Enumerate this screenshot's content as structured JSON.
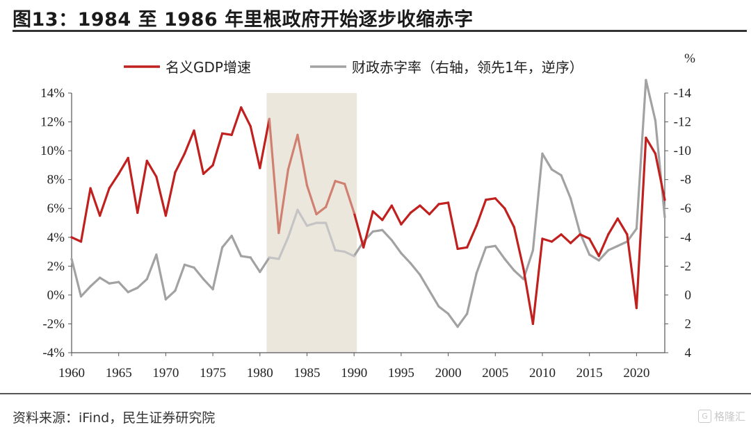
{
  "header": {
    "title": "图13：1984 至 1986 年里根政府开始逐步收缩赤字"
  },
  "footer": {
    "source": "资料来源：iFind，民生证券研究院",
    "watermark": "格隆汇",
    "watermark_mark": "G"
  },
  "chart_data": {
    "type": "line",
    "title": "图13：1984 至 1986 年里根政府开始逐步收缩赤字",
    "x": [
      1960,
      1961,
      1962,
      1963,
      1964,
      1965,
      1966,
      1967,
      1968,
      1969,
      1970,
      1971,
      1972,
      1973,
      1974,
      1975,
      1976,
      1977,
      1978,
      1979,
      1980,
      1981,
      1982,
      1983,
      1984,
      1985,
      1986,
      1987,
      1988,
      1989,
      1990,
      1991,
      1992,
      1993,
      1994,
      1995,
      1996,
      1997,
      1998,
      1999,
      2000,
      2001,
      2002,
      2003,
      2004,
      2005,
      2006,
      2007,
      2008,
      2009,
      2010,
      2011,
      2012,
      2013,
      2014,
      2015,
      2016,
      2017,
      2018,
      2019,
      2020,
      2021,
      2022,
      2023
    ],
    "xlim": [
      1960,
      2023
    ],
    "xticks": [
      "1960",
      "1965",
      "1970",
      "1975",
      "1980",
      "1985",
      "1990",
      "1995",
      "2000",
      "2005",
      "2010",
      "2015",
      "2020"
    ],
    "left_axis": {
      "label": "",
      "ylim": [
        -4,
        14
      ],
      "ticks": [
        "14%",
        "12%",
        "10%",
        "8%",
        "6%",
        "4%",
        "2%",
        "0%",
        "-2%",
        "-4%"
      ]
    },
    "right_axis": {
      "label": "%",
      "ylim": [
        4,
        -14
      ],
      "inverted": true,
      "ticks": [
        "-14",
        "-12",
        "-10",
        "-8",
        "-6",
        "-4",
        "-2",
        "0",
        "2",
        "4"
      ]
    },
    "shaded_region": {
      "x_start": 1981,
      "x_end": 1990,
      "color": "#ebe7dd"
    },
    "legend": {
      "position": "top",
      "entries": [
        "名义GDP增速",
        "财政赤字率（右轴，领先1年，逆序）"
      ]
    },
    "series": [
      {
        "name": "名义GDP增速",
        "axis": "left",
        "color": "#c0201e",
        "highlight_color": "#d08070",
        "values": [
          4.0,
          3.7,
          7.4,
          5.5,
          7.4,
          8.4,
          9.5,
          5.7,
          9.3,
          8.2,
          5.5,
          8.5,
          9.8,
          11.4,
          8.4,
          9.0,
          11.2,
          11.1,
          13.0,
          11.7,
          8.8,
          12.2,
          4.3,
          8.7,
          11.1,
          7.6,
          5.6,
          6.1,
          7.9,
          7.7,
          5.7,
          3.3,
          5.8,
          5.2,
          6.2,
          4.9,
          5.7,
          6.2,
          5.6,
          6.3,
          6.4,
          3.2,
          3.3,
          4.8,
          6.6,
          6.7,
          6.0,
          4.7,
          1.8,
          -2.0,
          3.9,
          3.7,
          4.2,
          3.6,
          4.2,
          3.9,
          2.7,
          4.2,
          5.3,
          4.2,
          -0.9,
          10.9,
          9.8,
          6.6
        ]
      },
      {
        "name": "财政赤字率（右轴，领先1年，逆序）",
        "axis": "right",
        "color": "#a2a2a2",
        "highlight_color": "#c4c4c4",
        "values": [
          -2.5,
          0.1,
          -0.6,
          -1.2,
          -0.8,
          -0.9,
          -0.2,
          -0.5,
          -1.1,
          -2.8,
          0.3,
          -0.3,
          -2.1,
          -1.9,
          -1.1,
          -0.4,
          -3.3,
          -4.1,
          -2.7,
          -2.6,
          -1.6,
          -2.6,
          -2.5,
          -4.0,
          -5.9,
          -4.8,
          -5.0,
          -5.0,
          -3.1,
          -3.0,
          -2.7,
          -3.7,
          -4.4,
          -4.5,
          -3.8,
          -2.9,
          -2.2,
          -1.4,
          -0.3,
          0.8,
          1.3,
          2.2,
          1.3,
          -1.5,
          -3.3,
          -3.4,
          -2.5,
          -1.7,
          -1.1,
          -3.1,
          -9.8,
          -8.7,
          -8.3,
          -6.7,
          -4.3,
          -2.8,
          -2.4,
          -3.1,
          -3.4,
          -3.7,
          -4.6,
          -14.9,
          -12.1,
          -5.4
        ]
      }
    ]
  }
}
